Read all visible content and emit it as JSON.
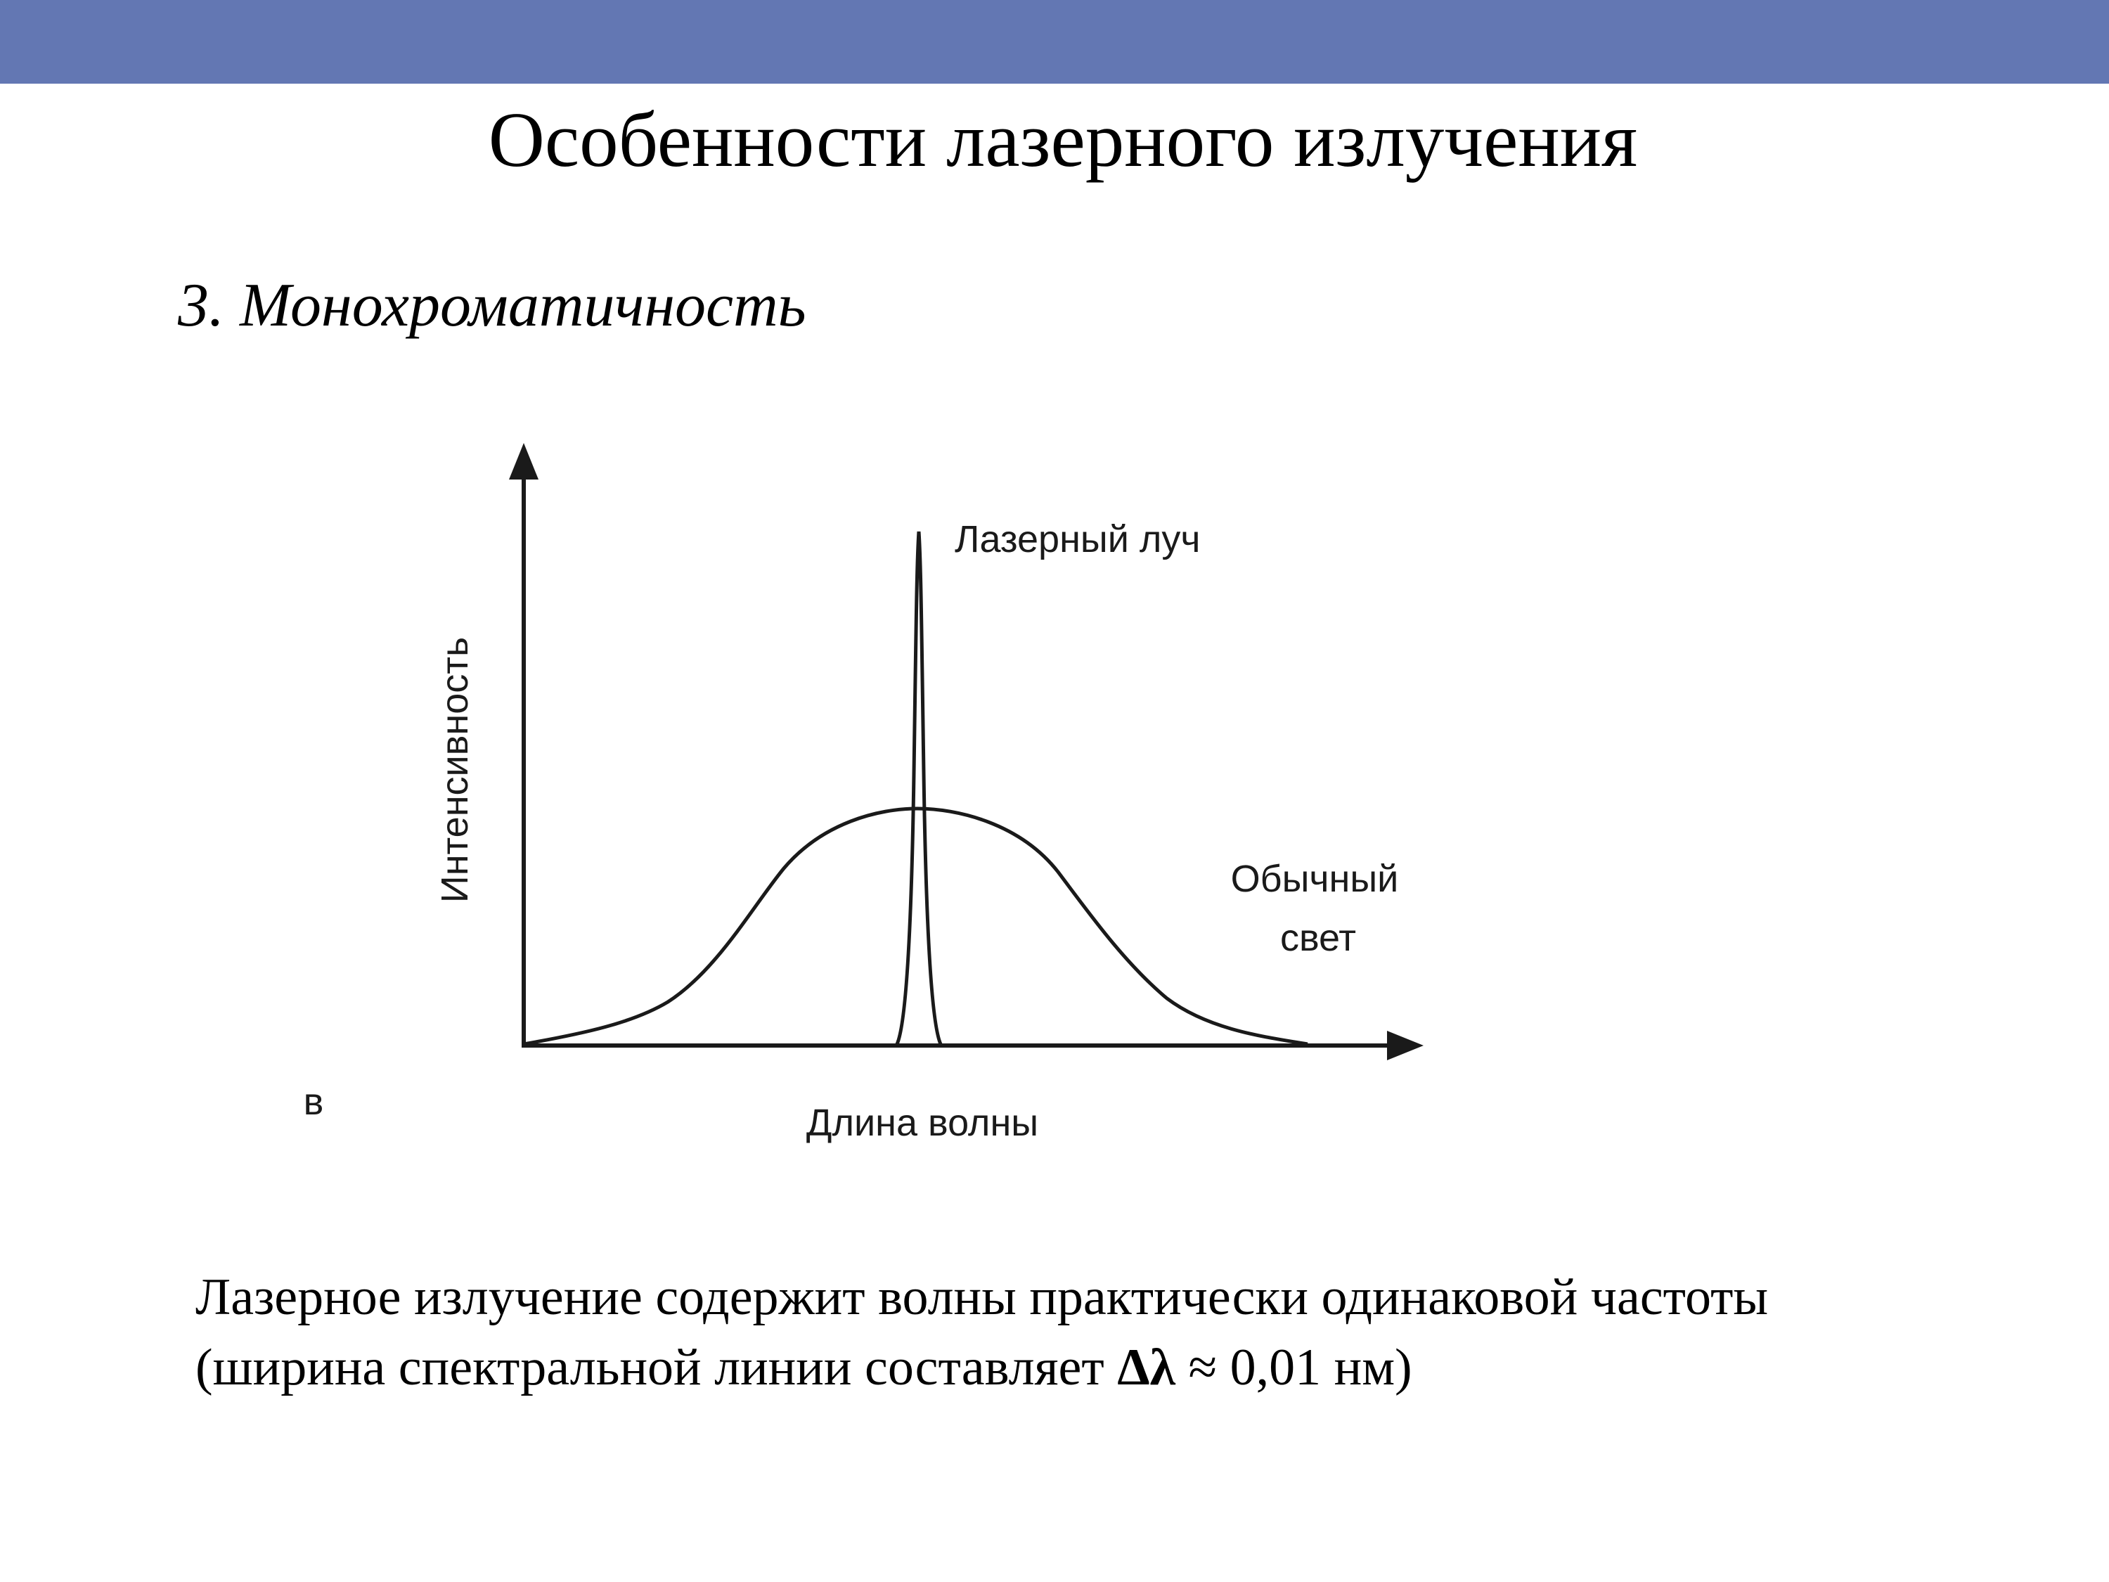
{
  "header": {
    "bar_color": "#6377b3",
    "title": "Особенности лазерного излучения"
  },
  "section": {
    "subtitle": "3. Монохроматичность"
  },
  "figure": {
    "panel_letter": "в",
    "y_axis_label": "Интенсивность",
    "x_axis_label": "Длина волны",
    "laser_label": "Лазерный луч",
    "ordinary_label_line1": "Обычный",
    "ordinary_label_line2": "свет"
  },
  "caption": {
    "line1": "Лазерное излучение содержит волны практически одинаковой частоты",
    "line2_prefix": "(ширина спектральной линии составляет ",
    "line2_symbol": "Δλ",
    "line2_suffix": " ≈ 0,01 нм)"
  }
}
